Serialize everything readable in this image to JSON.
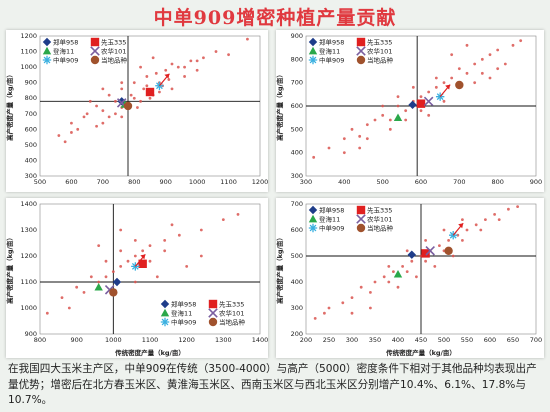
{
  "title": "中单909增密种植产量贡献",
  "caption": "在我国四大玉米主产区，中单909在传统（3500-4000）与高产（5000）密度条件下相对于其他品种均表现出产量优势；增密后在北方春玉米区、黄淮海玉米区、西南玉米区与西北玉米区分别增产10.4%、6.1%、17.8%与10.7%。",
  "colors": {
    "title": "#e0393f",
    "scatter_dots": "#d9534f",
    "zhengdan958": "#1f3d8a",
    "xianyu335": "#e02020",
    "denghai11": "#2aa84a",
    "nonghua101": "#7a5fa0",
    "zhongdan909": "#3ab0e0",
    "local": "#a0522d"
  },
  "legend": [
    {
      "name": "郑单958",
      "marker": "diamond",
      "color": "#1f3d8a"
    },
    {
      "name": "先玉335",
      "marker": "square",
      "color": "#e02020"
    },
    {
      "name": "登海11",
      "marker": "triangle",
      "color": "#2aa84a"
    },
    {
      "name": "农华101",
      "marker": "cross",
      "color": "#7a5fa0"
    },
    {
      "name": "中单909",
      "marker": "star",
      "color": "#3ab0e0"
    },
    {
      "name": "当地品种",
      "marker": "circle",
      "color": "#a0522d"
    }
  ],
  "chart_data": [
    {
      "type": "scatter",
      "region": "top-left",
      "xlabel": "",
      "ylabel": "高产密度产量（kg/亩）",
      "xlim": [
        500,
        1200
      ],
      "ylim": [
        300,
        1200
      ],
      "xticks": [
        500,
        600,
        700,
        800,
        900,
        1000,
        1100,
        1200
      ],
      "yticks": [
        300,
        400,
        500,
        600,
        700,
        800,
        900,
        1000,
        1100,
        1200
      ],
      "ref_x": 780,
      "ref_y": 780,
      "legend_position": "top-left",
      "scatter": [
        [
          560,
          560
        ],
        [
          600,
          640
        ],
        [
          620,
          600
        ],
        [
          650,
          700
        ],
        [
          680,
          750
        ],
        [
          700,
          720
        ],
        [
          720,
          820
        ],
        [
          740,
          700
        ],
        [
          760,
          860
        ],
        [
          780,
          760
        ],
        [
          800,
          900
        ],
        [
          820,
          780
        ],
        [
          840,
          940
        ],
        [
          860,
          820
        ],
        [
          880,
          900
        ],
        [
          900,
          980
        ],
        [
          920,
          860
        ],
        [
          940,
          1000
        ],
        [
          960,
          940
        ],
        [
          980,
          1040
        ],
        [
          1000,
          980
        ],
        [
          1020,
          1060
        ],
        [
          1060,
          1100
        ],
        [
          1100,
          1080
        ],
        [
          1160,
          1180
        ],
        [
          700,
          640
        ],
        [
          740,
          780
        ],
        [
          760,
          680
        ],
        [
          790,
          820
        ],
        [
          810,
          740
        ],
        [
          830,
          860
        ],
        [
          850,
          800
        ],
        [
          870,
          960
        ],
        [
          890,
          880
        ],
        [
          910,
          920
        ],
        [
          640,
          680
        ],
        [
          600,
          580
        ],
        [
          580,
          520
        ],
        [
          680,
          620
        ],
        [
          720,
          680
        ],
        [
          760,
          740
        ],
        [
          800,
          800
        ],
        [
          840,
          880
        ],
        [
          880,
          840
        ],
        [
          920,
          1020
        ],
        [
          960,
          1000
        ],
        [
          1000,
          1040
        ],
        [
          760,
          900
        ],
        [
          700,
          860
        ],
        [
          660,
          780
        ],
        [
          820,
          1000
        ],
        [
          860,
          1060
        ]
      ],
      "markers": [
        {
          "series": "郑单958",
          "x": 760,
          "y": 780
        },
        {
          "series": "先玉335",
          "x": 850,
          "y": 840
        },
        {
          "series": "登海11",
          "x": 770,
          "y": 760
        },
        {
          "series": "农华101",
          "x": 760,
          "y": 770
        },
        {
          "series": "中单909",
          "x": 880,
          "y": 880
        },
        {
          "series": "当地品种",
          "x": 780,
          "y": 750
        }
      ]
    },
    {
      "type": "scatter",
      "region": "top-right",
      "xlabel": "",
      "ylabel": "高产密度产量（kg/亩）",
      "xlim": [
        300,
        900
      ],
      "ylim": [
        300,
        900
      ],
      "xticks": [
        300,
        400,
        500,
        600,
        700,
        800,
        900
      ],
      "yticks": [
        300,
        400,
        500,
        600,
        700,
        800,
        900
      ],
      "ref_x": 590,
      "ref_y": 600,
      "legend_position": "top-left",
      "scatter": [
        [
          320,
          380
        ],
        [
          360,
          420
        ],
        [
          400,
          460
        ],
        [
          420,
          500
        ],
        [
          440,
          470
        ],
        [
          460,
          520
        ],
        [
          480,
          540
        ],
        [
          500,
          560
        ],
        [
          520,
          540
        ],
        [
          540,
          600
        ],
        [
          560,
          580
        ],
        [
          580,
          620
        ],
        [
          600,
          640
        ],
        [
          620,
          660
        ],
        [
          640,
          680
        ],
        [
          660,
          700
        ],
        [
          680,
          720
        ],
        [
          700,
          760
        ],
        [
          720,
          740
        ],
        [
          740,
          780
        ],
        [
          760,
          800
        ],
        [
          780,
          820
        ],
        [
          800,
          840
        ],
        [
          840,
          860
        ],
        [
          860,
          880
        ],
        [
          620,
          560
        ],
        [
          660,
          620
        ],
        [
          700,
          680
        ],
        [
          740,
          700
        ],
        [
          780,
          720
        ],
        [
          820,
          780
        ],
        [
          500,
          600
        ],
        [
          540,
          640
        ],
        [
          580,
          680
        ],
        [
          600,
          580
        ],
        [
          640,
          720
        ],
        [
          680,
          820
        ],
        [
          720,
          860
        ],
        [
          460,
          460
        ],
        [
          440,
          420
        ],
        [
          400,
          400
        ],
        [
          760,
          740
        ],
        [
          800,
          760
        ],
        [
          560,
          540
        ],
        [
          520,
          500
        ]
      ],
      "markers": [
        {
          "series": "郑单958",
          "x": 578,
          "y": 605
        },
        {
          "series": "先玉335",
          "x": 600,
          "y": 610
        },
        {
          "series": "登海11",
          "x": 540,
          "y": 550
        },
        {
          "series": "农华101",
          "x": 620,
          "y": 620
        },
        {
          "series": "中单909",
          "x": 650,
          "y": 640
        },
        {
          "series": "当地品种",
          "x": 700,
          "y": 690
        }
      ]
    },
    {
      "type": "scatter",
      "region": "bottom-left",
      "xlabel": "传统密度产量（kg/亩）",
      "ylabel": "高产密度产量（kg/亩）",
      "xlim": [
        800,
        1400
      ],
      "ylim": [
        900,
        1400
      ],
      "xticks": [
        800,
        900,
        1000,
        1100,
        1200,
        1300,
        1400
      ],
      "yticks": [
        900,
        1000,
        1100,
        1200,
        1300,
        1400
      ],
      "ref_x": 1000,
      "ref_y": 1100,
      "legend_position": "bottom-right",
      "scatter": [
        [
          820,
          980
        ],
        [
          880,
          1000
        ],
        [
          920,
          1060
        ],
        [
          960,
          1100
        ],
        [
          980,
          1120
        ],
        [
          1000,
          1140
        ],
        [
          1020,
          1160
        ],
        [
          1040,
          1180
        ],
        [
          1060,
          1200
        ],
        [
          1080,
          1220
        ],
        [
          1100,
          1240
        ],
        [
          1140,
          1260
        ],
        [
          1180,
          1280
        ],
        [
          1240,
          1300
        ],
        [
          1300,
          1340
        ],
        [
          1340,
          1360
        ],
        [
          900,
          1080
        ],
        [
          940,
          1120
        ],
        [
          980,
          1180
        ],
        [
          1020,
          1220
        ],
        [
          1060,
          1260
        ],
        [
          1100,
          1180
        ],
        [
          1140,
          1220
        ],
        [
          1200,
          1160
        ],
        [
          1240,
          1200
        ],
        [
          860,
          1040
        ],
        [
          1000,
          1060
        ],
        [
          1060,
          1100
        ],
        [
          1120,
          1120
        ],
        [
          1160,
          1320
        ],
        [
          960,
          1240
        ],
        [
          1020,
          1300
        ]
      ],
      "markers": [
        {
          "series": "郑单958",
          "x": 1010,
          "y": 1100
        },
        {
          "series": "先玉335",
          "x": 1080,
          "y": 1170
        },
        {
          "series": "登海11",
          "x": 960,
          "y": 1080
        },
        {
          "series": "农华101",
          "x": 990,
          "y": 1070
        },
        {
          "series": "中单909",
          "x": 1060,
          "y": 1160
        },
        {
          "series": "当地品种",
          "x": 1000,
          "y": 1060
        }
      ]
    },
    {
      "type": "scatter",
      "region": "bottom-right",
      "xlabel": "传统密度产量（kg/亩）",
      "ylabel": "高产密度产量（kg/亩）",
      "xlim": [
        200,
        700
      ],
      "ylim": [
        200,
        700
      ],
      "xticks": [
        200,
        250,
        300,
        350,
        400,
        450,
        500,
        550,
        600,
        650,
        700
      ],
      "yticks": [
        200,
        300,
        400,
        500,
        600,
        700
      ],
      "ref_x": 450,
      "ref_y": 500,
      "legend_position": "top-left",
      "scatter": [
        [
          220,
          260
        ],
        [
          250,
          300
        ],
        [
          280,
          320
        ],
        [
          300,
          340
        ],
        [
          320,
          380
        ],
        [
          350,
          400
        ],
        [
          370,
          420
        ],
        [
          390,
          440
        ],
        [
          410,
          460
        ],
        [
          430,
          480
        ],
        [
          450,
          500
        ],
        [
          470,
          520
        ],
        [
          490,
          540
        ],
        [
          510,
          560
        ],
        [
          530,
          580
        ],
        [
          550,
          600
        ],
        [
          570,
          620
        ],
        [
          590,
          640
        ],
        [
          610,
          660
        ],
        [
          640,
          680
        ],
        [
          660,
          690
        ],
        [
          240,
          280
        ],
        [
          300,
          280
        ],
        [
          340,
          360
        ],
        [
          380,
          400
        ],
        [
          420,
          440
        ],
        [
          460,
          480
        ],
        [
          500,
          520
        ],
        [
          540,
          560
        ],
        [
          580,
          600
        ],
        [
          620,
          640
        ],
        [
          380,
          460
        ],
        [
          420,
          520
        ],
        [
          460,
          560
        ],
        [
          500,
          600
        ],
        [
          540,
          640
        ],
        [
          340,
          300
        ],
        [
          400,
          380
        ],
        [
          440,
          420
        ],
        [
          480,
          460
        ],
        [
          520,
          500
        ]
      ],
      "markers": [
        {
          "series": "郑单958",
          "x": 430,
          "y": 505
        },
        {
          "series": "先玉335",
          "x": 460,
          "y": 510
        },
        {
          "series": "登海11",
          "x": 400,
          "y": 430
        },
        {
          "series": "农华101",
          "x": 470,
          "y": 520
        },
        {
          "series": "中单909",
          "x": 520,
          "y": 580
        },
        {
          "series": "当地品种",
          "x": 510,
          "y": 520
        }
      ]
    }
  ]
}
